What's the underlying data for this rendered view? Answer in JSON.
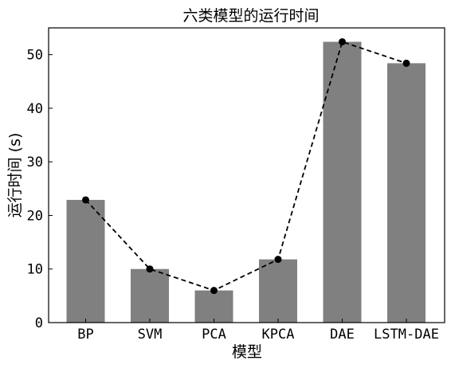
{
  "chart_data": {
    "type": "bar",
    "title": "六类模型的运行时间",
    "xlabel": "模型",
    "ylabel": "运行时间 (s)",
    "categories": [
      "BP",
      "SVM",
      "PCA",
      "KPCA",
      "DAE",
      "LSTM-DAE"
    ],
    "values": [
      22.9,
      10.0,
      6.0,
      11.8,
      52.4,
      48.4
    ],
    "overlay_line": {
      "style": "dashed",
      "markers": "circle",
      "values": [
        22.9,
        10.0,
        6.0,
        11.8,
        52.4,
        48.4
      ]
    },
    "ylim": [
      0,
      55
    ],
    "yticks": [
      0,
      10,
      20,
      30,
      40,
      50
    ],
    "grid": false,
    "colors": {
      "bar": "#808080",
      "line": "#000000",
      "marker": "#000000"
    }
  }
}
